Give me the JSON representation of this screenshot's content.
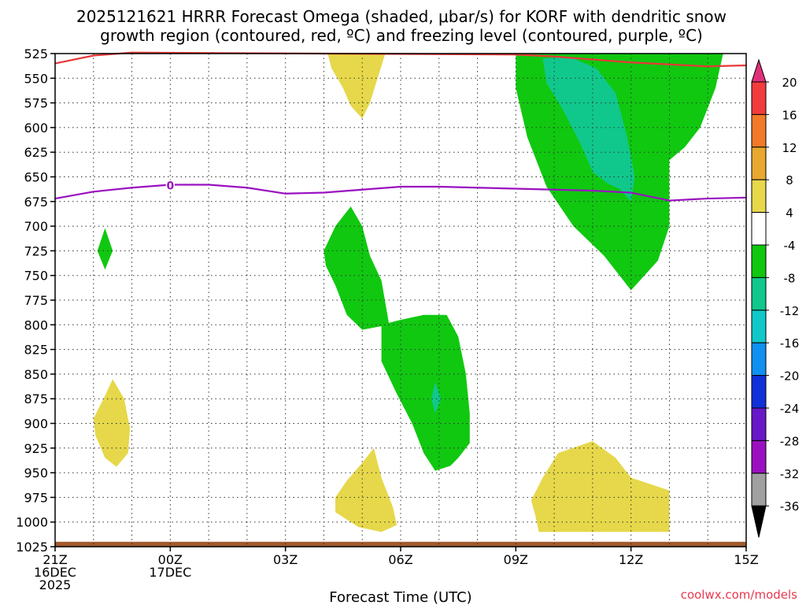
{
  "chart_data": {
    "type": "contour-cross-section",
    "title_line1": "2025121621 HRRR Forecast Omega (shaded, μbar/s) for KORF with dendritic snow",
    "title_line2": "growth region (contoured, red, ºC) and freezing level (contoured, purple, ºC)",
    "xlabel": "Forecast Time (UTC)",
    "credit": "coolwx.com/models",
    "x_range_hours": [
      0,
      18
    ],
    "y_range_hpa": [
      525,
      1025
    ],
    "y_ticks": [
      525,
      550,
      575,
      600,
      625,
      650,
      675,
      700,
      725,
      750,
      775,
      800,
      825,
      850,
      875,
      900,
      925,
      950,
      975,
      1000,
      1025
    ],
    "x_ticks": [
      {
        "h": 0,
        "l1": "21Z",
        "l2": "16DEC",
        "l3": "2025"
      },
      {
        "h": 3,
        "l1": "00Z",
        "l2": "17DEC",
        "l3": ""
      },
      {
        "h": 6,
        "l1": "03Z",
        "l2": "",
        "l3": ""
      },
      {
        "h": 9,
        "l1": "06Z",
        "l2": "",
        "l3": ""
      },
      {
        "h": 12,
        "l1": "09Z",
        "l2": "",
        "l3": ""
      },
      {
        "h": 15,
        "l1": "12Z",
        "l2": "",
        "l3": ""
      },
      {
        "h": 18,
        "l1": "15Z",
        "l2": "",
        "l3": ""
      }
    ],
    "colorbar": {
      "labels": [
        "20",
        "16",
        "12",
        "8",
        "4",
        "-4",
        "-8",
        "-12",
        "-16",
        "-20",
        "-24",
        "-28",
        "-32",
        "-36"
      ],
      "colors": [
        "#e0307a",
        "#f03c3c",
        "#f07a28",
        "#e8a830",
        "#e6d84a",
        "#ffffff",
        "#10c810",
        "#10c88c",
        "#10c8c8",
        "#1090f0",
        "#1030d8",
        "#6818c8",
        "#9a10c0",
        "#a0a0a0",
        "#000000"
      ]
    },
    "omega_regions": [
      {
        "name": "yellow-upper-mid",
        "value": "4 to 8",
        "color": "#e6d84a",
        "points": [
          [
            7.1,
            525
          ],
          [
            8.6,
            525
          ],
          [
            8.4,
            550
          ],
          [
            8.2,
            575
          ],
          [
            8.0,
            591
          ],
          [
            7.7,
            578
          ],
          [
            7.5,
            560
          ],
          [
            7.2,
            540
          ]
        ]
      },
      {
        "name": "yellow-low-left",
        "value": "4 to 8",
        "color": "#e6d84a",
        "points": [
          [
            1.0,
            895
          ],
          [
            1.3,
            872
          ],
          [
            1.5,
            855
          ],
          [
            1.8,
            875
          ],
          [
            1.95,
            905
          ],
          [
            1.9,
            930
          ],
          [
            1.6,
            944
          ],
          [
            1.3,
            935
          ],
          [
            1.05,
            912
          ]
        ]
      },
      {
        "name": "yellow-low-mid",
        "value": "4 to 8",
        "color": "#e6d84a",
        "points": [
          [
            7.3,
            975
          ],
          [
            7.6,
            958
          ],
          [
            8.0,
            940
          ],
          [
            8.3,
            925
          ],
          [
            8.5,
            955
          ],
          [
            8.8,
            985
          ],
          [
            8.9,
            1003
          ],
          [
            8.5,
            1010
          ],
          [
            7.9,
            1005
          ],
          [
            7.3,
            990
          ]
        ]
      },
      {
        "name": "yellow-low-right",
        "value": "4 to 8",
        "color": "#e6d84a",
        "points": [
          [
            12.4,
            978
          ],
          [
            12.7,
            955
          ],
          [
            13.1,
            930
          ],
          [
            14.0,
            918
          ],
          [
            14.6,
            935
          ],
          [
            15.0,
            955
          ],
          [
            16.0,
            968
          ],
          [
            16.0,
            1010
          ],
          [
            12.6,
            1010
          ],
          [
            12.5,
            992
          ]
        ]
      },
      {
        "name": "green-upper-right",
        "value": "-4 to -8",
        "color": "#10c810",
        "points": [
          [
            12.0,
            525
          ],
          [
            17.4,
            525
          ],
          [
            17.2,
            560
          ],
          [
            16.8,
            600
          ],
          [
            16.4,
            620
          ],
          [
            16.0,
            633
          ],
          [
            16.0,
            700
          ],
          [
            15.7,
            735
          ],
          [
            15.0,
            765
          ],
          [
            14.3,
            730
          ],
          [
            13.5,
            700
          ],
          [
            12.8,
            660
          ],
          [
            12.3,
            610
          ],
          [
            12.0,
            560
          ]
        ]
      },
      {
        "name": "teal-upper-right",
        "value": "-8 to -12",
        "color": "#10c88c",
        "points": [
          [
            12.7,
            530
          ],
          [
            13.4,
            528
          ],
          [
            14.1,
            540
          ],
          [
            14.6,
            565
          ],
          [
            14.9,
            610
          ],
          [
            15.1,
            650
          ],
          [
            15.0,
            675
          ],
          [
            14.7,
            662
          ],
          [
            14.4,
            657
          ],
          [
            14.0,
            645
          ],
          [
            13.7,
            618
          ],
          [
            13.2,
            580
          ],
          [
            12.8,
            555
          ]
        ]
      },
      {
        "name": "green-mid-left",
        "value": "-4 to -8",
        "color": "#10c810",
        "points": [
          [
            7.0,
            725
          ],
          [
            7.3,
            700
          ],
          [
            7.7,
            680
          ],
          [
            8.0,
            700
          ],
          [
            8.2,
            730
          ],
          [
            8.5,
            755
          ],
          [
            8.7,
            800
          ],
          [
            8.0,
            805
          ],
          [
            7.6,
            790
          ],
          [
            7.3,
            760
          ],
          [
            7.05,
            740
          ]
        ]
      },
      {
        "name": "green-mid-center",
        "value": "-4 to -8",
        "color": "#10c810",
        "points": [
          [
            8.5,
            800
          ],
          [
            9.0,
            795
          ],
          [
            9.6,
            790
          ],
          [
            10.2,
            790
          ],
          [
            10.5,
            812
          ],
          [
            10.7,
            850
          ],
          [
            10.8,
            890
          ],
          [
            10.8,
            920
          ],
          [
            10.5,
            935
          ],
          [
            10.3,
            943
          ],
          [
            9.9,
            948
          ],
          [
            9.6,
            930
          ],
          [
            9.3,
            900
          ],
          [
            8.9,
            870
          ],
          [
            8.5,
            837
          ]
        ]
      },
      {
        "name": "green-small-left",
        "value": "-4 to -8",
        "color": "#10c810",
        "points": [
          [
            1.1,
            725
          ],
          [
            1.3,
            702
          ],
          [
            1.5,
            725
          ],
          [
            1.3,
            744
          ]
        ]
      },
      {
        "name": "teal-small-center",
        "value": "-8 to -12",
        "color": "#10c88c",
        "points": [
          [
            9.8,
            875
          ],
          [
            9.9,
            858
          ],
          [
            10.05,
            875
          ],
          [
            9.9,
            890
          ]
        ]
      }
    ],
    "freezing_level_line": {
      "label": "0",
      "color": "#9a10c0",
      "label_at": [
        3.0,
        658
      ],
      "points": [
        [
          0,
          672
        ],
        [
          1,
          665
        ],
        [
          2,
          661
        ],
        [
          3,
          658
        ],
        [
          4,
          658
        ],
        [
          5,
          661
        ],
        [
          6,
          667
        ],
        [
          7,
          666
        ],
        [
          8,
          663
        ],
        [
          9,
          660
        ],
        [
          10,
          660
        ],
        [
          11,
          661
        ],
        [
          12,
          662
        ],
        [
          13,
          663
        ],
        [
          14,
          664
        ],
        [
          15,
          666
        ],
        [
          16,
          674
        ],
        [
          17,
          672
        ],
        [
          18,
          671
        ]
      ]
    },
    "dgz_line": {
      "color": "#e83838",
      "points": [
        [
          0,
          535
        ],
        [
          1,
          527
        ],
        [
          2,
          524
        ],
        [
          12,
          526
        ],
        [
          13,
          528
        ],
        [
          14,
          531
        ],
        [
          15,
          534
        ],
        [
          16,
          536
        ],
        [
          17,
          538
        ],
        [
          18,
          537
        ]
      ]
    },
    "terrain": {
      "color": "#a05a2c",
      "top_hpa": 1020
    }
  }
}
